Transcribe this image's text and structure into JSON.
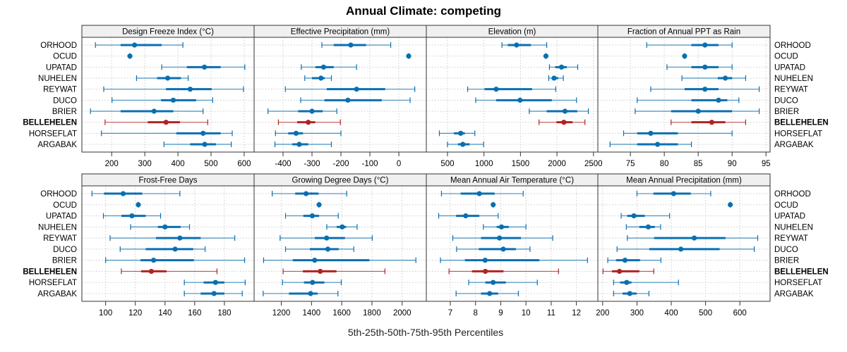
{
  "chart_data": {
    "type": "dot-range",
    "title": "Annual Climate: competing",
    "xlabel": "5th-25th-50th-75th-95th Percentiles",
    "legend": "none",
    "grid": true,
    "colors": {
      "default": "#0a6fb0",
      "highlight": "#b22222"
    },
    "highlight_category": "BELLEHELEN",
    "categories": [
      "ORHOOD",
      "OCUD",
      "UPATAD",
      "NUHELEN",
      "REYWAT",
      "DUCO",
      "BRIER",
      "BELLEHELEN",
      "HORSEFLAT",
      "ARGABAK"
    ],
    "percentiles": [
      "p5",
      "p25",
      "p50",
      "p75",
      "p95"
    ],
    "panels": [
      {
        "title": "Design Freeze Index (°C)",
        "xlim": [
          110,
          630
        ],
        "ticks": [
          200,
          300,
          400,
          500,
          600
        ],
        "values": [
          [
            151,
            227,
            269,
            351,
            415
          ],
          [
            255,
            255,
            255,
            255,
            255
          ],
          [
            351,
            427,
            480,
            529,
            602
          ],
          [
            275,
            337,
            369,
            409,
            431
          ],
          [
            176,
            364,
            437,
            502,
            598
          ],
          [
            201,
            349,
            386,
            455,
            505
          ],
          [
            136,
            227,
            328,
            386,
            476
          ],
          [
            180,
            309,
            364,
            406,
            490
          ],
          [
            169,
            395,
            476,
            529,
            564
          ],
          [
            358,
            437,
            481,
            515,
            561
          ]
        ]
      },
      {
        "title": "Effective Precipitation (mm)",
        "xlim": [
          -500,
          95
        ],
        "ticks": [
          -400,
          -300,
          -200,
          -100,
          0
        ],
        "values": [
          [
            -266,
            -225,
            -166,
            -113,
            -28
          ],
          [
            34,
            34,
            34,
            34,
            34
          ],
          [
            -337,
            -288,
            -260,
            -225,
            -146
          ],
          [
            -325,
            -300,
            -269,
            -256,
            -233
          ],
          [
            -392,
            -249,
            -146,
            -47,
            55
          ],
          [
            -339,
            -257,
            -176,
            -59,
            39
          ],
          [
            -452,
            -348,
            -300,
            -263,
            -214
          ],
          [
            -416,
            -351,
            -313,
            -289,
            -202
          ],
          [
            -426,
            -382,
            -355,
            -331,
            -200
          ],
          [
            -428,
            -368,
            -344,
            -313,
            -233
          ]
        ]
      },
      {
        "title": "Elevation (m)",
        "xlim": [
          210,
          2560
        ],
        "ticks": [
          500,
          1000,
          1500,
          2000,
          2500
        ],
        "values": [
          [
            1246,
            1325,
            1446,
            1643,
            1859
          ],
          [
            1849,
            1849,
            1849,
            1849,
            1849
          ],
          [
            1897,
            1976,
            2062,
            2135,
            2284
          ],
          [
            1887,
            1929,
            1960,
            2017,
            2087
          ],
          [
            776,
            1008,
            1167,
            1659,
            1983
          ],
          [
            887,
            1167,
            1494,
            1929,
            2268
          ],
          [
            1621,
            1859,
            2110,
            2278,
            2430
          ],
          [
            1754,
            1992,
            2094,
            2214,
            2383
          ],
          [
            389,
            589,
            681,
            738,
            875
          ],
          [
            500,
            643,
            710,
            802,
            995
          ]
        ]
      },
      {
        "title": "Fraction of Annual PPT as Rain",
        "xlim": [
          70.2,
          95.6
        ],
        "ticks": [
          75,
          80,
          85,
          90,
          95
        ],
        "values": [
          [
            77.4,
            84,
            86,
            88,
            90
          ],
          [
            83,
            83,
            83,
            83,
            83
          ],
          [
            80.4,
            84,
            86,
            88,
            90
          ],
          [
            82.6,
            87.9,
            89,
            90,
            92
          ],
          [
            78,
            83,
            86,
            88,
            94
          ],
          [
            76,
            84,
            88,
            89.3,
            91
          ],
          [
            75.7,
            81,
            85,
            90,
            94
          ],
          [
            81,
            84,
            87,
            89,
            92
          ],
          [
            74,
            76,
            78,
            82,
            90
          ],
          [
            72,
            76,
            79,
            82,
            84
          ]
        ]
      },
      {
        "title": "Frost-Free Days",
        "xlim": [
          84,
          200
        ],
        "ticks": [
          100,
          120,
          140,
          160,
          180
        ],
        "values": [
          [
            90.8,
            98.9,
            111.8,
            124.7,
            150
          ],
          [
            122,
            122,
            122,
            122,
            122
          ],
          [
            98.5,
            110.6,
            117.7,
            127,
            137
          ],
          [
            116.8,
            135.2,
            140,
            150.5,
            156.5
          ],
          [
            103,
            133.9,
            150,
            164,
            187
          ],
          [
            109.8,
            127,
            146.8,
            159,
            167
          ],
          [
            100,
            123.5,
            132.3,
            159.4,
            193.6
          ],
          [
            110.6,
            123.9,
            130.8,
            141,
            175
          ],
          [
            153,
            166,
            174,
            180,
            194
          ],
          [
            153,
            164,
            173,
            180,
            192
          ]
        ]
      },
      {
        "title": "Growing Degree Days (°C)",
        "xlim": [
          1020,
          2160
        ],
        "ticks": [
          1200,
          1400,
          1600,
          1800,
          2000
        ],
        "values": [
          [
            1140,
            1292,
            1364,
            1447,
            1633
          ],
          [
            1450,
            1450,
            1450,
            1450,
            1450
          ],
          [
            1228,
            1346,
            1405,
            1450,
            1577
          ],
          [
            1501,
            1567,
            1603,
            1629,
            1702
          ],
          [
            1192,
            1422,
            1500,
            1621,
            1802
          ],
          [
            1228,
            1389,
            1508,
            1580,
            1680
          ],
          [
            1083,
            1276,
            1421,
            1783,
            2091
          ],
          [
            1212,
            1343,
            1458,
            1565,
            1886
          ],
          [
            1208,
            1350,
            1407,
            1485,
            1597
          ],
          [
            1080,
            1251,
            1394,
            1441,
            1575
          ]
        ]
      },
      {
        "title": "Mean Annual Air Temperature (°C)",
        "xlim": [
          6.05,
          12.85
        ],
        "ticks": [
          7,
          8,
          9,
          10,
          11,
          12
        ],
        "values": [
          [
            6.65,
            7.41,
            8.15,
            8.76,
            9.89
          ],
          [
            8.7,
            8.7,
            8.7,
            8.7,
            8.7
          ],
          [
            6.54,
            7.23,
            7.61,
            8.15,
            8.9
          ],
          [
            8.31,
            8.84,
            9.03,
            9.32,
            10
          ],
          [
            7.1,
            8.22,
            8.95,
            9.8,
            11.06
          ],
          [
            7.25,
            8.13,
            9.1,
            9.6,
            10.16
          ],
          [
            6.61,
            7.58,
            8.38,
            10.53,
            12.44
          ],
          [
            6.95,
            7.86,
            8.39,
            9.11,
            11.29
          ],
          [
            7.73,
            8.39,
            8.7,
            9.2,
            10.45
          ],
          [
            7.23,
            8.22,
            8.56,
            8.9,
            9.7
          ]
        ]
      },
      {
        "title": "Mean Annual Precipitation (mm)",
        "xlim": [
          186,
          688
        ],
        "ticks": [
          200,
          300,
          400,
          500,
          600
        ],
        "values": [
          [
            300,
            348,
            407,
            457,
            515
          ],
          [
            572,
            572,
            572,
            572,
            572
          ],
          [
            254,
            272,
            291,
            323,
            395
          ],
          [
            269,
            307,
            333,
            352,
            369
          ],
          [
            272,
            350,
            467,
            558,
            652
          ],
          [
            242,
            336,
            428,
            541,
            642
          ],
          [
            215,
            239,
            265,
            309,
            370
          ],
          [
            201,
            227,
            249,
            307,
            349
          ],
          [
            232,
            251,
            270,
            284,
            421
          ],
          [
            232,
            258,
            279,
            299,
            335
          ]
        ]
      }
    ]
  }
}
